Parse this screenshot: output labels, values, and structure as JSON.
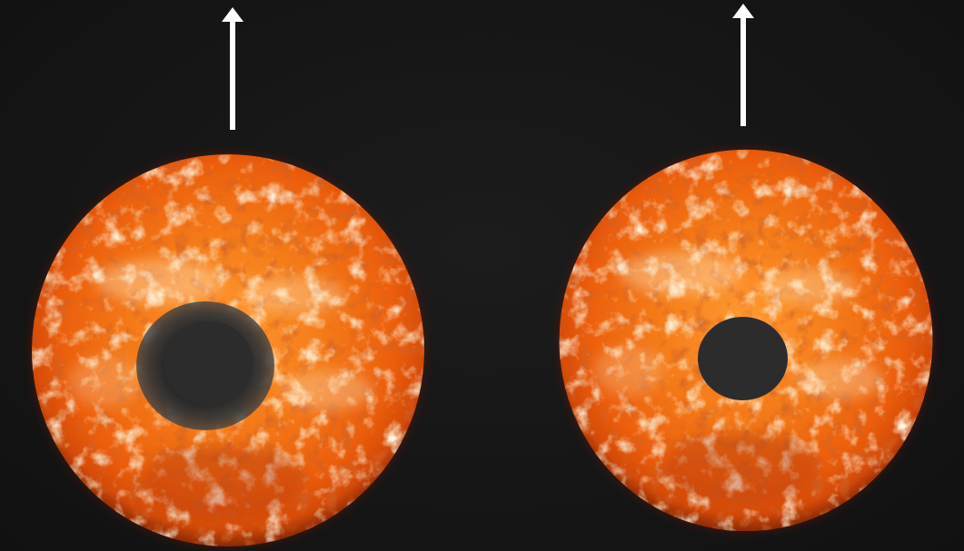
{
  "scene": {
    "background_color": "#141414",
    "panels": [
      {
        "id": "left",
        "arrow_direction": "up",
        "arrow_color": "#ffffff",
        "sun_color": "#f26a10",
        "spot_color": "#2c2c2c",
        "spot_edge": "blurred"
      },
      {
        "id": "right",
        "arrow_direction": "up",
        "arrow_color": "#ffffff",
        "sun_color": "#f26a10",
        "spot_color": "#2c2c2c",
        "spot_edge": "sharp"
      }
    ]
  }
}
